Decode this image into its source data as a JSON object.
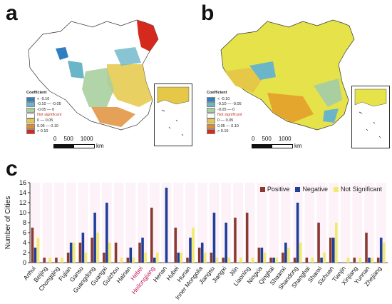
{
  "panels": {
    "a_label": "a",
    "b_label": "b",
    "c_label": "c"
  },
  "map_legend": {
    "title": "Coefficient",
    "items": [
      {
        "label": "< -0.10",
        "color": "#2f7fc1"
      },
      {
        "label": "-0.10 — -0.05",
        "color": "#6bb5c9"
      },
      {
        "label": "-0.05 — 0",
        "color": "#a9cfa0"
      },
      {
        "label": "Not significant",
        "color": "#ffffff"
      },
      {
        "label": "0 — 0.05",
        "color": "#e5c847"
      },
      {
        "label": "0.05 — 0.10",
        "color": "#e08a2e"
      },
      {
        "label": "> 0.10",
        "color": "#d42a1e"
      }
    ]
  },
  "scalebar": {
    "ticks": [
      "0",
      "500",
      "1000"
    ],
    "unit": "km"
  },
  "chart_data": {
    "type": "bar",
    "ylabel": "Number of Cities",
    "ylim": [
      0,
      16
    ],
    "yticks": [
      0,
      2,
      4,
      6,
      8,
      10,
      12,
      14,
      16
    ],
    "legend_position": "top-right",
    "categories": [
      "Anhui",
      "Beijing",
      "Chongqing",
      "Fujian",
      "Gansu",
      "Guangdong",
      "Guangxi",
      "Guizhou",
      "Hainan",
      "Hebei",
      "Heilongjiang",
      "Henan",
      "Hubei",
      "Hunan",
      "Inner Mongolia",
      "Jiangsu",
      "Jiangxi",
      "Jilin",
      "Liaoning",
      "Ningxia",
      "Qinghai",
      "Shaanxi",
      "Shandong",
      "Shanghai",
      "Shanxi",
      "Sichuan",
      "Tianjin",
      "Xinjiang",
      "Yunnan",
      "Zhejiang"
    ],
    "series": [
      {
        "name": "Positive",
        "color": "#8b3a32",
        "values": [
          7,
          1,
          1,
          2,
          4,
          5,
          2,
          4,
          1,
          4,
          11,
          0,
          7,
          1,
          3,
          2,
          1,
          9,
          10,
          3,
          1,
          2,
          1,
          1,
          8,
          5,
          0,
          1,
          6,
          1
        ]
      },
      {
        "name": "Negative",
        "color": "#1f3f9a",
        "values": [
          3,
          0,
          0,
          4,
          6,
          10,
          12,
          0,
          3,
          5,
          1,
          15,
          2,
          5,
          4,
          10,
          8,
          0,
          0,
          3,
          1,
          4,
          12,
          0,
          1,
          5,
          0,
          0,
          1,
          5
        ]
      },
      {
        "name": "Not Significant",
        "color": "#f2ea6a",
        "values": [
          5,
          1,
          1,
          4,
          2,
          6,
          4,
          1,
          1,
          2,
          2,
          0,
          2,
          7,
          2,
          1,
          1,
          1,
          1,
          2,
          1,
          3,
          4,
          1,
          2,
          8,
          1,
          1,
          1,
          4
        ]
      }
    ]
  }
}
